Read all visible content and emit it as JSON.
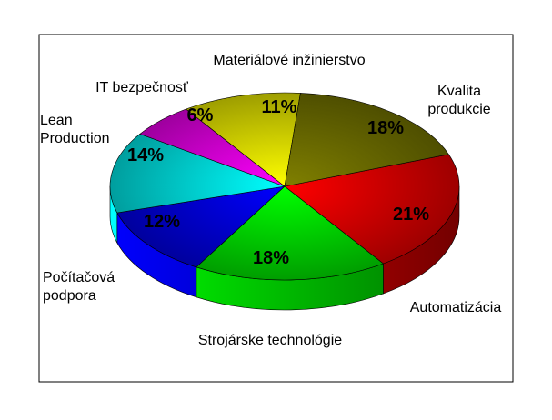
{
  "chart_data": {
    "type": "pie",
    "style": "3d",
    "title": "",
    "slices": [
      {
        "label": "Automatizácia",
        "label_lines": [
          "Automatizácia"
        ],
        "value": 21,
        "display": "21%",
        "color": "#ff0000"
      },
      {
        "label": "Strojárske technológie",
        "label_lines": [
          "Strojárske technológie"
        ],
        "value": 18,
        "display": "18%",
        "color": "#00ff00"
      },
      {
        "label": "Počítačová podpora",
        "label_lines": [
          "Počítačová",
          "podpora"
        ],
        "value": 12,
        "display": "12%",
        "color": "#0000ff"
      },
      {
        "label": "Lean Production",
        "label_lines": [
          "Lean",
          "Production"
        ],
        "value": 14,
        "display": "14%",
        "color": "#00ffff"
      },
      {
        "label": "IT bezpečnosť",
        "label_lines": [
          "IT bezpečnosť"
        ],
        "value": 6,
        "display": "6%",
        "color": "#ff00ff"
      },
      {
        "label": "Materiálové inžinierstvo",
        "label_lines": [
          "Materiálové inžinierstvo"
        ],
        "value": 11,
        "display": "11%",
        "color": "#ffff00"
      },
      {
        "label": "Kvalita produkcie",
        "label_lines": [
          "Kvalita",
          "produkcie"
        ],
        "value": 18,
        "display": "18%",
        "color": "#808000"
      }
    ],
    "legend": "none"
  }
}
